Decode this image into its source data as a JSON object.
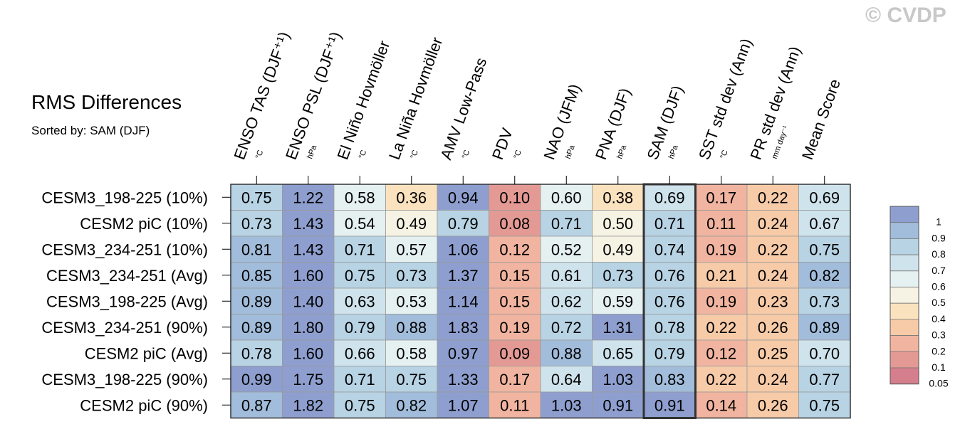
{
  "watermark": "© CVDP",
  "chart_data": {
    "type": "heatmap",
    "title": "RMS Differences",
    "subtitle": "Sorted by: SAM (DJF)",
    "highlighted_column": 8,
    "columns": [
      {
        "name": "ENSO TAS (DJF⁺¹)",
        "unit": "°C"
      },
      {
        "name": "ENSO PSL (DJF⁺¹)",
        "unit": "hPa"
      },
      {
        "name": "El Niño Hovmöller",
        "unit": "°C"
      },
      {
        "name": "La Niña Hovmöller",
        "unit": "°C"
      },
      {
        "name": "AMV Low-Pass",
        "unit": "°C"
      },
      {
        "name": "PDV",
        "unit": "°C"
      },
      {
        "name": "NAO (JFM)",
        "unit": "hPa"
      },
      {
        "name": "PNA (DJF)",
        "unit": "hPa"
      },
      {
        "name": "SAM (DJF)",
        "unit": "hPa"
      },
      {
        "name": "SST std dev (Ann)",
        "unit": "°C"
      },
      {
        "name": "PR std dev (Ann)",
        "unit": "mm day⁻¹"
      },
      {
        "name": "Mean Score",
        "unit": ""
      }
    ],
    "rows": [
      "CESM3_198-225 (10%)",
      "CESM2 piC (10%)",
      "CESM3_234-251 (10%)",
      "CESM3_234-251 (Avg)",
      "CESM3_198-225 (Avg)",
      "CESM3_234-251 (90%)",
      "CESM2 piC (Avg)",
      "CESM3_198-225 (90%)",
      "CESM2 piC (90%)"
    ],
    "values": [
      [
        "0.75",
        "1.22",
        "0.58",
        "0.36",
        "0.94",
        "0.10",
        "0.60",
        "0.38",
        "0.69",
        "0.17",
        "0.22",
        "0.69"
      ],
      [
        "0.73",
        "1.43",
        "0.54",
        "0.49",
        "0.79",
        "0.08",
        "0.71",
        "0.50",
        "0.71",
        "0.11",
        "0.24",
        "0.67"
      ],
      [
        "0.81",
        "1.43",
        "0.71",
        "0.57",
        "1.06",
        "0.12",
        "0.52",
        "0.49",
        "0.74",
        "0.19",
        "0.22",
        "0.75"
      ],
      [
        "0.85",
        "1.60",
        "0.75",
        "0.73",
        "1.37",
        "0.15",
        "0.61",
        "0.73",
        "0.76",
        "0.21",
        "0.24",
        "0.82"
      ],
      [
        "0.89",
        "1.40",
        "0.63",
        "0.53",
        "1.14",
        "0.15",
        "0.62",
        "0.59",
        "0.76",
        "0.19",
        "0.23",
        "0.73"
      ],
      [
        "0.89",
        "1.80",
        "0.79",
        "0.88",
        "1.83",
        "0.19",
        "0.72",
        "1.31",
        "0.78",
        "0.22",
        "0.26",
        "0.89"
      ],
      [
        "0.78",
        "1.60",
        "0.66",
        "0.58",
        "0.97",
        "0.09",
        "0.88",
        "0.65",
        "0.79",
        "0.12",
        "0.25",
        "0.70"
      ],
      [
        "0.99",
        "1.75",
        "0.71",
        "0.75",
        "1.33",
        "0.17",
        "0.64",
        "1.03",
        "0.83",
        "0.22",
        "0.24",
        "0.77"
      ],
      [
        "0.87",
        "1.82",
        "0.75",
        "0.82",
        "1.07",
        "0.11",
        "1.03",
        "0.91",
        "0.91",
        "0.14",
        "0.26",
        "0.75"
      ]
    ],
    "colorbar": {
      "labels": [
        "1",
        "0.9",
        "0.8",
        "0.7",
        "0.6",
        "0.5",
        "0.4",
        "0.3",
        "0.2",
        "0.1",
        "0.05"
      ],
      "thresholds": [
        0.05,
        0.1,
        0.2,
        0.3,
        0.4,
        0.5,
        0.6,
        0.7,
        0.8,
        0.9,
        1.0
      ],
      "colors": [
        "#d67f8c",
        "#e49a94",
        "#f1b4a0",
        "#f7cba8",
        "#fbe2bf",
        "#f6f3e4",
        "#e5f0f0",
        "#cfe3ec",
        "#b7d3e4",
        "#a2bddb",
        "#8e9fcf"
      ]
    }
  }
}
